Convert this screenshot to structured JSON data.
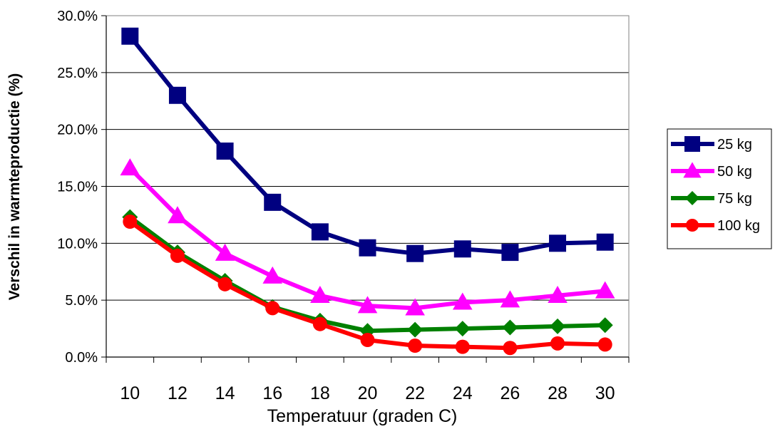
{
  "chart_data": {
    "type": "line",
    "title": "",
    "xlabel": "Temperatuur (graden C)",
    "ylabel": "Verschil in warmteproductie (%)",
    "x": [
      10,
      12,
      14,
      16,
      18,
      20,
      22,
      24,
      26,
      28,
      30
    ],
    "x_tick_labels": [
      "10",
      "12",
      "14",
      "16",
      "18",
      "20",
      "22",
      "24",
      "26",
      "28",
      "30"
    ],
    "y_tick_labels": [
      "0.0%",
      "5.0%",
      "10.0%",
      "15.0%",
      "20.0%",
      "25.0%",
      "30.0%"
    ],
    "ylim": [
      0,
      30
    ],
    "y_unit": "%",
    "grid": "horizontal",
    "legend_position": "right",
    "series": [
      {
        "name": "25 kg",
        "color": "#000080",
        "marker": "square",
        "values": [
          28.2,
          23.0,
          18.1,
          13.6,
          11.0,
          9.6,
          9.1,
          9.5,
          9.2,
          10.0,
          10.1
        ]
      },
      {
        "name": "50 kg",
        "color": "#ff00ff",
        "marker": "triangle",
        "values": [
          16.6,
          12.4,
          9.1,
          7.1,
          5.4,
          4.5,
          4.3,
          4.8,
          5.0,
          5.4,
          5.8
        ]
      },
      {
        "name": "75 kg",
        "color": "#008000",
        "marker": "diamond",
        "values": [
          12.3,
          9.2,
          6.7,
          4.4,
          3.2,
          2.3,
          2.4,
          2.5,
          2.6,
          2.7,
          2.8
        ]
      },
      {
        "name": "100 kg",
        "color": "#ff0000",
        "marker": "circle",
        "values": [
          11.9,
          8.9,
          6.4,
          4.3,
          2.9,
          1.5,
          1.0,
          0.9,
          0.8,
          1.2,
          1.1
        ]
      }
    ]
  }
}
